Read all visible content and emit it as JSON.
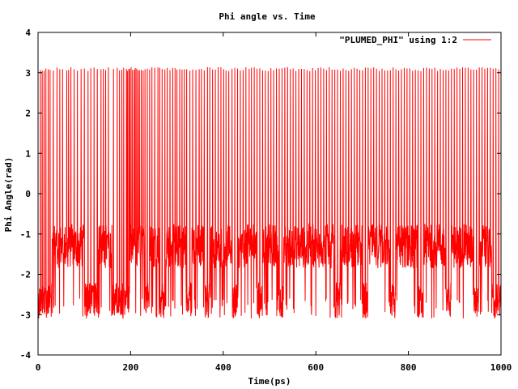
{
  "chart_data": {
    "type": "line",
    "title": "Phi angle vs. Time",
    "xlabel": "Time(ps)",
    "ylabel": "Phi Angle(rad)",
    "xlim": [
      0,
      1000
    ],
    "ylim": [
      -4,
      4
    ],
    "x_ticks": [
      "0",
      "200",
      "400",
      "600",
      "800",
      "1000"
    ],
    "y_ticks": [
      "-4",
      "-3",
      "-2",
      "-1",
      "0",
      "1",
      "2",
      "3",
      "4"
    ],
    "grid": false,
    "legend_position": "top-right",
    "series": [
      {
        "name": "\"PLUMED_PHI\" using 1:2",
        "color": "#ff0000",
        "sampling_step_ps": 0.5,
        "baseline_value": -1.3,
        "lower_envelope_value": -3.1,
        "upper_envelope_value": 3.14,
        "wrap_events_ps": [
          5,
          9,
          13,
          17,
          22,
          26,
          33,
          41,
          47,
          53,
          62,
          66,
          71,
          78,
          85,
          93,
          100,
          108,
          114,
          121,
          128,
          136,
          141,
          146,
          152,
          163,
          171,
          176,
          181,
          185,
          191,
          193,
          196,
          198,
          201,
          204,
          208,
          210,
          213,
          216,
          219,
          223,
          227,
          231,
          236,
          241,
          246,
          252,
          259,
          263,
          268,
          274,
          279,
          285,
          291,
          296,
          300,
          306,
          311,
          316,
          321,
          328,
          334,
          341,
          348,
          353,
          359,
          366,
          371,
          377,
          383,
          389,
          395,
          401,
          406,
          412,
          419,
          425,
          431,
          437,
          443,
          449,
          456,
          461,
          467,
          473,
          479,
          485,
          491,
          497,
          503,
          509,
          515,
          521,
          527,
          533,
          539,
          545,
          551,
          557,
          563,
          569,
          575,
          581,
          587,
          593,
          599,
          605,
          611,
          617,
          623,
          629,
          635,
          641,
          647,
          653,
          659,
          665,
          671,
          677,
          683,
          689,
          695,
          701,
          707,
          713,
          719,
          725,
          731,
          737,
          743,
          749,
          755,
          761,
          767,
          773,
          779,
          785,
          791,
          797,
          803,
          809,
          815,
          821,
          827,
          833,
          839,
          845,
          851,
          857,
          863,
          869,
          875,
          881,
          887,
          893,
          899,
          905,
          911,
          917,
          923,
          929,
          935,
          941,
          947,
          953,
          959,
          965,
          971,
          977,
          983,
          989,
          995
        ],
        "deep_state_segments_ps": [
          [
            0,
            30
          ],
          [
            100,
            128
          ],
          [
            160,
            198
          ],
          [
            230,
            240
          ],
          [
            262,
            276
          ],
          [
            320,
            332
          ],
          [
            360,
            372
          ],
          [
            420,
            432
          ],
          [
            472,
            484
          ],
          [
            520,
            530
          ],
          [
            640,
            652
          ],
          [
            700,
            712
          ],
          [
            760,
            772
          ],
          [
            820,
            832
          ],
          [
            880,
            892
          ],
          [
            940,
            952
          ],
          [
            980,
            1000
          ]
        ]
      }
    ]
  }
}
